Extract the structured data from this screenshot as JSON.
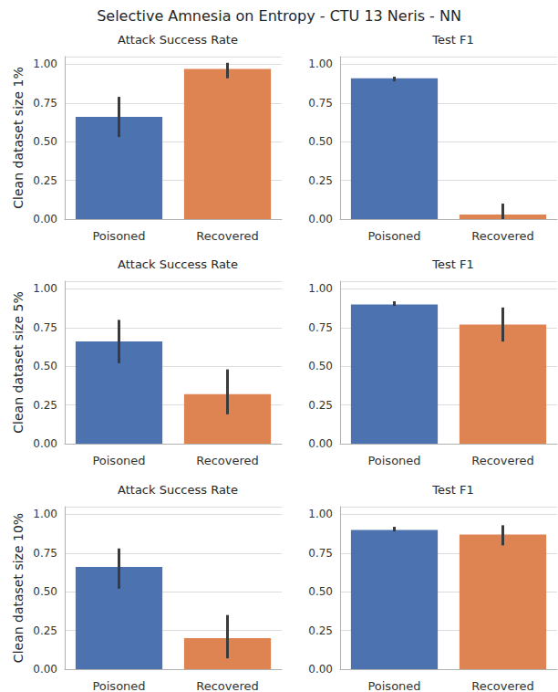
{
  "title": "Selective Amnesia on Entropy - CTU 13 Neris - NN",
  "chart_data": [
    {
      "type": "bar",
      "title": "Attack Success Rate",
      "ylabel": "Clean dataset size 1%",
      "categories": [
        "Poisoned",
        "Recovered"
      ],
      "values": [
        0.66,
        0.97
      ],
      "ci": [
        [
          0.53,
          0.79
        ],
        [
          0.91,
          1.01
        ]
      ],
      "colors": [
        "#4c72b0",
        "#dd8452"
      ],
      "ylim": [
        0,
        1.05
      ],
      "yticks": [
        {
          "value": 0,
          "label": "0.00"
        },
        {
          "value": 0.25,
          "label": "0.25"
        },
        {
          "value": 0.5,
          "label": "0.50"
        },
        {
          "value": 0.75,
          "label": "0.75"
        },
        {
          "value": 1,
          "label": "1.00"
        }
      ],
      "grid": true
    },
    {
      "type": "bar",
      "title": "Test F1",
      "categories": [
        "Poisoned",
        "Recovered"
      ],
      "values": [
        0.91,
        0.03
      ],
      "ci": [
        [
          0.89,
          0.92
        ],
        [
          0.0,
          0.1
        ]
      ],
      "colors": [
        "#4c72b0",
        "#dd8452"
      ],
      "ylim": [
        0,
        1.05
      ],
      "yticks": [
        {
          "value": 0,
          "label": "0.00"
        },
        {
          "value": 0.25,
          "label": "0.25"
        },
        {
          "value": 0.5,
          "label": "0.50"
        },
        {
          "value": 0.75,
          "label": "0.75"
        },
        {
          "value": 1,
          "label": "1.00"
        }
      ],
      "grid": true
    },
    {
      "type": "bar",
      "title": "Attack Success Rate",
      "ylabel": "Clean dataset size 5%",
      "categories": [
        "Poisoned",
        "Recovered"
      ],
      "values": [
        0.66,
        0.32
      ],
      "ci": [
        [
          0.52,
          0.8
        ],
        [
          0.19,
          0.48
        ]
      ],
      "colors": [
        "#4c72b0",
        "#dd8452"
      ],
      "ylim": [
        0,
        1.05
      ],
      "yticks": [
        {
          "value": 0,
          "label": "0.00"
        },
        {
          "value": 0.25,
          "label": "0.25"
        },
        {
          "value": 0.5,
          "label": "0.50"
        },
        {
          "value": 0.75,
          "label": "0.75"
        },
        {
          "value": 1,
          "label": "1.00"
        }
      ],
      "grid": true
    },
    {
      "type": "bar",
      "title": "Test F1",
      "categories": [
        "Poisoned",
        "Recovered"
      ],
      "values": [
        0.9,
        0.77
      ],
      "ci": [
        [
          0.89,
          0.92
        ],
        [
          0.66,
          0.88
        ]
      ],
      "colors": [
        "#4c72b0",
        "#dd8452"
      ],
      "ylim": [
        0,
        1.05
      ],
      "yticks": [
        {
          "value": 0,
          "label": "0.00"
        },
        {
          "value": 0.25,
          "label": "0.25"
        },
        {
          "value": 0.5,
          "label": "0.50"
        },
        {
          "value": 0.75,
          "label": "0.75"
        },
        {
          "value": 1,
          "label": "1.00"
        }
      ],
      "grid": true
    },
    {
      "type": "bar",
      "title": "Attack Success Rate",
      "ylabel": "Clean dataset size 10%",
      "categories": [
        "Poisoned",
        "Recovered"
      ],
      "values": [
        0.66,
        0.2
      ],
      "ci": [
        [
          0.52,
          0.78
        ],
        [
          0.07,
          0.35
        ]
      ],
      "colors": [
        "#4c72b0",
        "#dd8452"
      ],
      "ylim": [
        0,
        1.05
      ],
      "yticks": [
        {
          "value": 0,
          "label": "0.00"
        },
        {
          "value": 0.25,
          "label": "0.25"
        },
        {
          "value": 0.5,
          "label": "0.50"
        },
        {
          "value": 0.75,
          "label": "0.75"
        },
        {
          "value": 1,
          "label": "1.00"
        }
      ],
      "grid": true
    },
    {
      "type": "bar",
      "title": "Test F1",
      "categories": [
        "Poisoned",
        "Recovered"
      ],
      "values": [
        0.9,
        0.87
      ],
      "ci": [
        [
          0.89,
          0.92
        ],
        [
          0.8,
          0.93
        ]
      ],
      "colors": [
        "#4c72b0",
        "#dd8452"
      ],
      "ylim": [
        0,
        1.05
      ],
      "yticks": [
        {
          "value": 0,
          "label": "0.00"
        },
        {
          "value": 0.25,
          "label": "0.25"
        },
        {
          "value": 0.5,
          "label": "0.50"
        },
        {
          "value": 0.75,
          "label": "0.75"
        },
        {
          "value": 1,
          "label": "1.00"
        }
      ],
      "grid": true
    }
  ]
}
